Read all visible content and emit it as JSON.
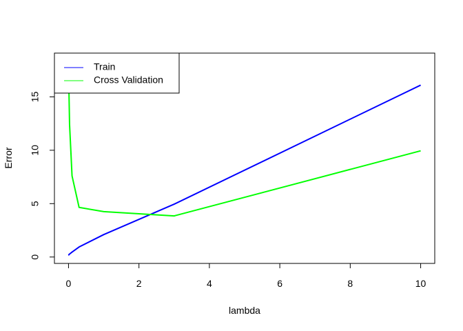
{
  "chart_data": {
    "type": "line",
    "title": "",
    "xlabel": "lambda",
    "ylabel": "Error",
    "xlim": [
      -0.4,
      10.4
    ],
    "ylim": [
      -0.6,
      19.1
    ],
    "xticks": [
      0,
      2,
      4,
      6,
      8,
      10
    ],
    "yticks": [
      0,
      5,
      10,
      15
    ],
    "grid": false,
    "legend_position": "top-left",
    "series": [
      {
        "name": "Train",
        "color": "#0000ff",
        "x": [
          0,
          0.001,
          0.003,
          0.01,
          0.03,
          0.1,
          0.3,
          1,
          3,
          10
        ],
        "y": [
          0.17,
          0.17,
          0.18,
          0.22,
          0.28,
          0.46,
          0.94,
          2.1,
          4.95,
          16.1
        ]
      },
      {
        "name": "Cross Validation",
        "color": "#00ff00",
        "x": [
          0,
          0.001,
          0.003,
          0.01,
          0.03,
          0.1,
          0.3,
          1,
          3,
          10
        ],
        "y": [
          18.0,
          17.6,
          16.9,
          15.9,
          12.4,
          7.6,
          4.65,
          4.25,
          3.85,
          9.95
        ]
      }
    ]
  }
}
